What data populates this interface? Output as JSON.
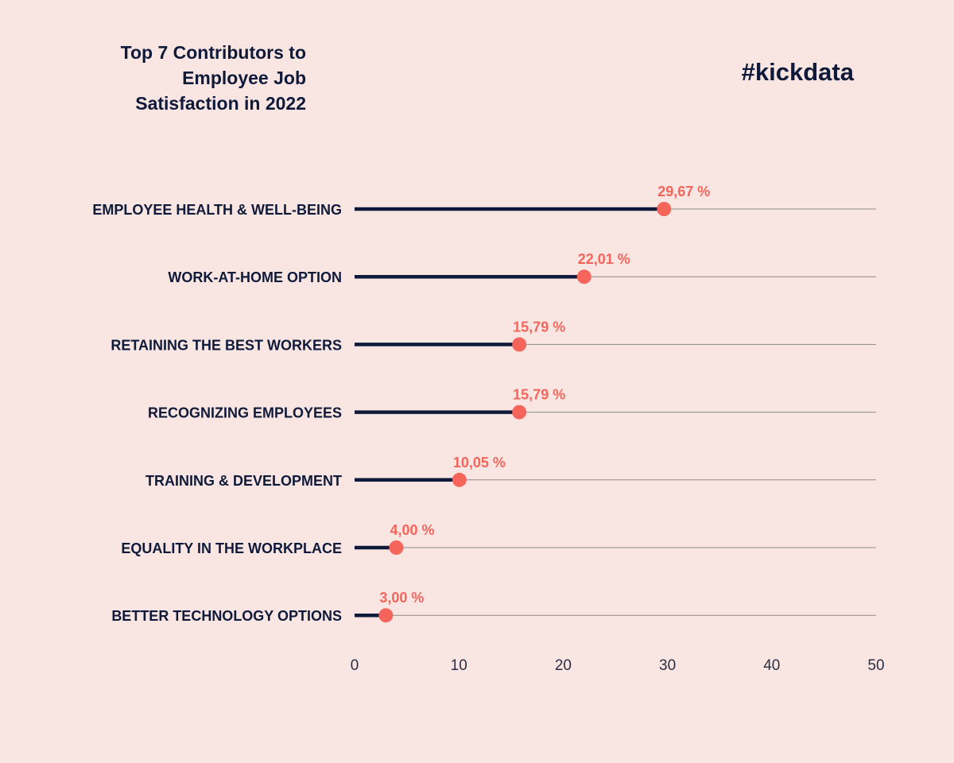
{
  "header": {
    "title_lines": [
      "Top 7 Contributors to",
      "Employee Job",
      "Satisfaction in 2022"
    ],
    "brand": "#kickdata"
  },
  "colors": {
    "background": "#f9e6e2",
    "text": "#0f1a3a",
    "bar": "#0f1a3a",
    "dot": "#f5655b",
    "gridline": "#8a8a8a"
  },
  "chart_data": {
    "type": "lollipop",
    "title": "Top 7 Contributors to Employee Job Satisfaction in 2022",
    "categories": [
      "EMPLOYEE HEALTH & WELL-BEING",
      "WORK-AT-HOME OPTION",
      "RETAINING THE BEST WORKERS",
      "RECOGNIZING EMPLOYEES",
      "TRAINING & DEVELOPMENT",
      "EQUALITY IN THE WORKPLACE",
      "BETTER TECHNOLOGY OPTIONS"
    ],
    "values": [
      29.67,
      22.01,
      15.79,
      15.79,
      10.05,
      4.0,
      3.0
    ],
    "value_labels": [
      "29,67 %",
      "22,01 %",
      "15,79 %",
      "15,79 %",
      "10,05 %",
      "4,00 %",
      "3,00 %"
    ],
    "xlim": [
      0,
      50
    ],
    "xticks": [
      0,
      10,
      20,
      30,
      40,
      50
    ],
    "xlabel": "",
    "ylabel": "",
    "legend": "none"
  }
}
